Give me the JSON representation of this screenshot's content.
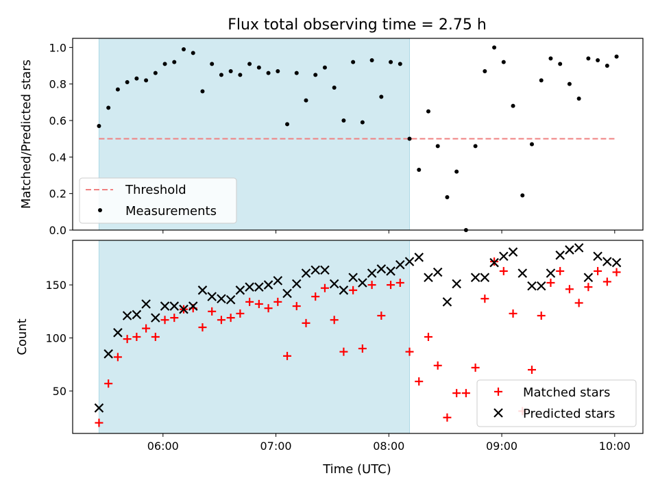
{
  "title": "Flux total observing time = 2.75 h",
  "colors": {
    "band": "#add8e6",
    "threshold": "#f08080",
    "measurement": "#000000",
    "matched": "#ff0000",
    "predicted": "#000000"
  },
  "chart_data": [
    {
      "type": "scatter",
      "panel": "top",
      "xlabel": "",
      "ylabel": "Matched/Predicted stars",
      "ylim": [
        0,
        1.05
      ],
      "yticks": [
        0.0,
        0.2,
        0.4,
        0.6,
        0.8,
        1.0
      ],
      "ytick_labels": [
        "0.0",
        "0.2",
        "0.4",
        "0.6",
        "0.8",
        "1.0"
      ],
      "xlim": [
        "05:12",
        "10:15"
      ],
      "shaded_band": {
        "from": "05:26",
        "to": "08:11"
      },
      "threshold": {
        "value": 0.5,
        "from": "05:26",
        "to": "10:00",
        "style": "dashed"
      },
      "legend": {
        "position": "lower-left",
        "entries": [
          "Threshold",
          "Measurements"
        ]
      },
      "series": [
        {
          "name": "Measurements",
          "x": [
            "05:26",
            "05:31",
            "05:36",
            "05:41",
            "05:46",
            "05:51",
            "05:56",
            "06:01",
            "06:06",
            "06:11",
            "06:16",
            "06:21",
            "06:26",
            "06:31",
            "06:36",
            "06:41",
            "06:46",
            "06:51",
            "06:56",
            "07:01",
            "07:06",
            "07:11",
            "07:16",
            "07:21",
            "07:26",
            "07:31",
            "07:36",
            "07:41",
            "07:46",
            "07:51",
            "07:56",
            "08:01",
            "08:06",
            "08:11",
            "08:16",
            "08:21",
            "08:26",
            "08:31",
            "08:36",
            "08:41",
            "08:46",
            "08:51",
            "08:56",
            "09:01",
            "09:06",
            "09:11",
            "09:16",
            "09:21",
            "09:26",
            "09:31",
            "09:36",
            "09:41",
            "09:46",
            "09:51",
            "09:56",
            "10:01"
          ],
          "values": [
            0.57,
            0.67,
            0.77,
            0.81,
            0.83,
            0.82,
            0.86,
            0.91,
            0.92,
            0.99,
            0.97,
            0.76,
            0.91,
            0.85,
            0.87,
            0.85,
            0.91,
            0.89,
            0.86,
            0.87,
            0.58,
            0.86,
            0.71,
            0.85,
            0.89,
            0.78,
            0.6,
            0.92,
            0.59,
            0.93,
            0.73,
            0.92,
            0.91,
            0.5,
            0.33,
            0.65,
            0.46,
            0.18,
            0.32,
            0.0,
            0.46,
            0.87,
            1.0,
            0.92,
            0.68,
            0.19,
            0.47,
            0.82,
            0.94,
            0.91,
            0.8,
            0.72,
            0.94,
            0.93,
            0.9,
            0.95
          ]
        }
      ]
    },
    {
      "type": "scatter",
      "panel": "bottom",
      "xlabel": "Time (UTC)",
      "ylabel": "Count",
      "ylim": [
        10,
        192
      ],
      "yticks": [
        50,
        100,
        150
      ],
      "ytick_labels": [
        "50",
        "100",
        "150"
      ],
      "xlim": [
        "05:12",
        "10:15"
      ],
      "xticks": [
        "06:00",
        "07:00",
        "08:00",
        "09:00",
        "10:00"
      ],
      "xtick_labels": [
        "06:00",
        "07:00",
        "08:00",
        "09:00",
        "10:00"
      ],
      "shaded_band": {
        "from": "05:26",
        "to": "08:11"
      },
      "legend": {
        "position": "lower-right",
        "entries": [
          "Matched stars",
          "Predicted stars"
        ]
      },
      "series": [
        {
          "name": "Matched stars",
          "marker": "+",
          "x": [
            "05:26",
            "05:31",
            "05:36",
            "05:41",
            "05:46",
            "05:51",
            "05:56",
            "06:01",
            "06:06",
            "06:11",
            "06:16",
            "06:21",
            "06:26",
            "06:31",
            "06:36",
            "06:41",
            "06:46",
            "06:51",
            "06:56",
            "07:01",
            "07:06",
            "07:11",
            "07:16",
            "07:21",
            "07:26",
            "07:31",
            "07:36",
            "07:41",
            "07:46",
            "07:51",
            "07:56",
            "08:01",
            "08:06",
            "08:11",
            "08:16",
            "08:21",
            "08:26",
            "08:31",
            "08:36",
            "08:41",
            "08:46",
            "08:51",
            "08:56",
            "09:01",
            "09:06",
            "09:11",
            "09:16",
            "09:21",
            "09:26",
            "09:31",
            "09:36",
            "09:41",
            "09:46",
            "09:51",
            "09:56",
            "10:01"
          ],
          "values": [
            20,
            57,
            82,
            99,
            101,
            109,
            101,
            117,
            119,
            127,
            128,
            110,
            125,
            117,
            119,
            123,
            134,
            132,
            128,
            134,
            83,
            130,
            114,
            139,
            147,
            117,
            87,
            145,
            90,
            150,
            121,
            150,
            152,
            87,
            59,
            101,
            74,
            25,
            48,
            48,
            72,
            137,
            172,
            163,
            123,
            31,
            70,
            121,
            152,
            163,
            146,
            133,
            148,
            163,
            153,
            162
          ]
        },
        {
          "name": "Predicted stars",
          "marker": "x",
          "x": [
            "05:26",
            "05:31",
            "05:36",
            "05:41",
            "05:46",
            "05:51",
            "05:56",
            "06:01",
            "06:06",
            "06:11",
            "06:16",
            "06:21",
            "06:26",
            "06:31",
            "06:36",
            "06:41",
            "06:46",
            "06:51",
            "06:56",
            "07:01",
            "07:06",
            "07:11",
            "07:16",
            "07:21",
            "07:26",
            "07:31",
            "07:36",
            "07:41",
            "07:46",
            "07:51",
            "07:56",
            "08:01",
            "08:06",
            "08:11",
            "08:16",
            "08:21",
            "08:26",
            "08:31",
            "08:36",
            "08:41",
            "08:46",
            "08:51",
            "08:56",
            "09:01",
            "09:06",
            "09:11",
            "09:16",
            "09:21",
            "09:26",
            "09:31",
            "09:36",
            "09:41",
            "09:46",
            "09:51",
            "09:56",
            "10:01"
          ],
          "values": [
            34,
            85,
            105,
            121,
            122,
            132,
            119,
            130,
            130,
            127,
            130,
            145,
            139,
            137,
            136,
            145,
            148,
            148,
            150,
            154,
            142,
            151,
            161,
            164,
            164,
            151,
            145,
            157,
            152,
            161,
            165,
            163,
            169,
            172,
            176,
            157,
            162,
            134,
            151,
            null,
            157,
            157,
            171,
            177,
            181,
            161,
            149,
            149,
            161,
            178,
            183,
            185,
            157,
            177,
            172,
            171
          ]
        }
      ]
    }
  ]
}
